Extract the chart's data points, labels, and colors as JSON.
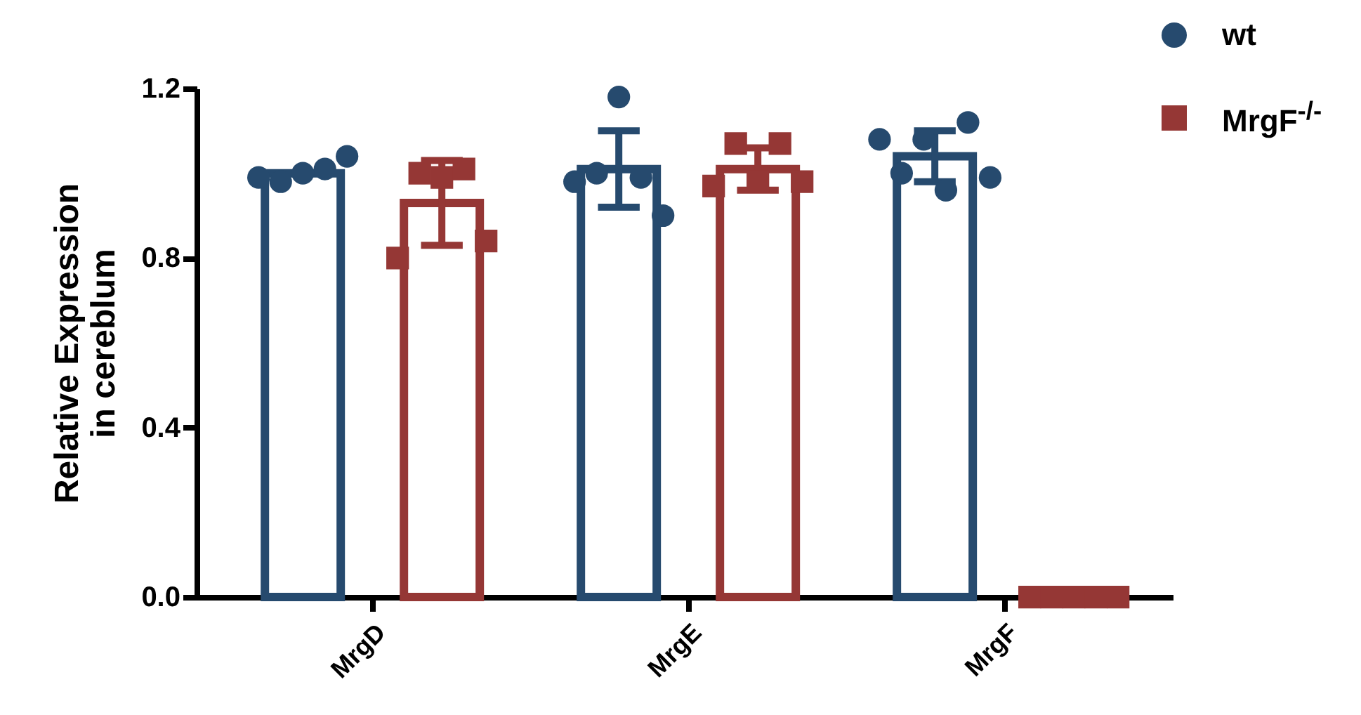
{
  "chart_data": {
    "type": "bar",
    "ylabel": "Relative Expression\nin cereblum",
    "categories": [
      "MrgD",
      "MrgE",
      "MrgF"
    ],
    "ylim": [
      0,
      1.2
    ],
    "yticks": [
      {
        "value": 0,
        "label": "0.0"
      },
      0.4,
      0.8,
      1.2
    ],
    "grid": false,
    "legend": "top right",
    "series": [
      {
        "color": "#264a6e",
        "values": [
          1.0,
          1.01,
          1.04
        ],
        "errors": [
          null,
          0.09,
          0.06
        ]
      },
      {
        "color": "#953735",
        "values": [
          0.93,
          1.01,
          0
        ],
        "errors": [
          0.1,
          0.05,
          0
        ]
      },
      {
        "name": "wt",
        "type": "scatter",
        "marker": "circle",
        "color": "#264a6e",
        "x": [
          "MrgD",
          "MrgD",
          "MrgD",
          "MrgD",
          "MrgD",
          "MrgE",
          "MrgE",
          "MrgE",
          "MrgE",
          "MrgE",
          "MrgF",
          "MrgF",
          "MrgF",
          "MrgF",
          "MrgF",
          "MrgF"
        ],
        "values": [
          0.99,
          0.98,
          1.0,
          1.01,
          1.04,
          0.98,
          1.0,
          1.18,
          0.99,
          0.9,
          1.08,
          1.0,
          1.08,
          0.96,
          1.12,
          0.99
        ]
      },
      {
        "name": "MrgF$^{-/-}$",
        "type": "scatter",
        "marker": "square",
        "color": "#953735",
        "x": [
          "MrgD",
          "MrgD",
          "MrgD",
          "MrgD",
          "MrgD",
          "MrgE",
          "MrgE",
          "MrgE",
          "MrgE",
          "MrgE",
          "MrgF",
          "MrgF",
          "MrgF",
          "MrgF",
          "MrgF"
        ],
        "values": [
          0.8,
          1.0,
          0.99,
          1.01,
          0.84,
          0.97,
          1.07,
          0.98,
          1.07,
          0.98,
          0,
          0,
          0,
          0,
          0
        ]
      }
    ]
  }
}
